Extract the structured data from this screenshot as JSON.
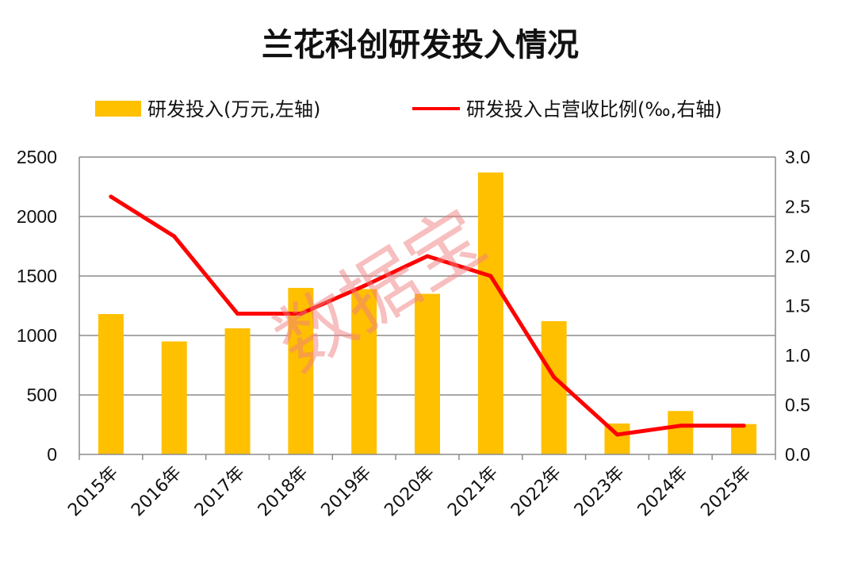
{
  "chart_data": {
    "type": "bar",
    "title": "兰花科创研发投入情况",
    "categories": [
      "2015年",
      "2016年",
      "2017年",
      "2018年",
      "2019年",
      "2020年",
      "2021年",
      "2022年",
      "2023年",
      "2024年",
      "2025年"
    ],
    "series": [
      {
        "name": "研发投入(万元,左轴)",
        "type": "bar",
        "axis": "left",
        "color": "#FFC000",
        "values": [
          1180,
          950,
          1060,
          1400,
          1390,
          1350,
          2370,
          1120,
          260,
          365,
          255
        ]
      },
      {
        "name": "研发投入占营收比例(‰,右轴)",
        "type": "line",
        "axis": "right",
        "color": "#FF0000",
        "values": [
          2.6,
          2.2,
          1.42,
          1.42,
          1.7,
          2.0,
          1.8,
          0.78,
          0.2,
          0.29,
          0.29
        ]
      }
    ],
    "y_left": {
      "min": 0,
      "max": 2500,
      "ticks": [
        0,
        500,
        1000,
        1500,
        2000,
        2500
      ]
    },
    "y_right": {
      "min": 0,
      "max": 3.0,
      "ticks": [
        "0.0",
        "0.5",
        "1.0",
        "1.5",
        "2.0",
        "2.5",
        "3.0"
      ]
    },
    "grid": true,
    "legend": "top"
  },
  "watermark": "数据宝"
}
